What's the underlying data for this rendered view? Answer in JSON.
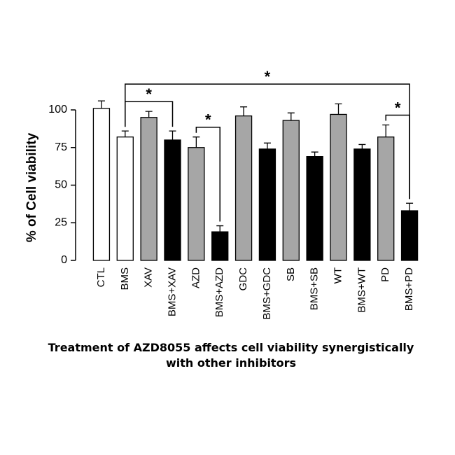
{
  "chart_data": {
    "type": "bar",
    "ylabel": "% of Cell viability",
    "categories": [
      "CTL",
      "BMS",
      "XAV",
      "BMS+XAV",
      "AZD",
      "BMS+AZD",
      "GDC",
      "BMS+GDC",
      "SB",
      "BMS+SB",
      "WT",
      "BMS+WT",
      "PD",
      "BMS+PD"
    ],
    "values": [
      101,
      82,
      95,
      80,
      75,
      19,
      96,
      74,
      93,
      69,
      97,
      74,
      82,
      33
    ],
    "errors": [
      5,
      4,
      4,
      6,
      7,
      4,
      6,
      4,
      5,
      3,
      7,
      3,
      8,
      5
    ],
    "colors": [
      "#ffffff",
      "#ffffff",
      "#a6a6a6",
      "#000000",
      "#a6a6a6",
      "#000000",
      "#a6a6a6",
      "#000000",
      "#a6a6a6",
      "#000000",
      "#a6a6a6",
      "#000000",
      "#a6a6a6",
      "#000000"
    ],
    "ylim": [
      0,
      100
    ],
    "yticks": [
      0,
      25,
      50,
      75,
      100
    ],
    "significance": [
      {
        "from": "BMS",
        "to": "BMS+XAV",
        "label": "*"
      },
      {
        "from": "AZD",
        "to": "BMS+AZD",
        "label": "*"
      },
      {
        "from": "PD",
        "to": "BMS+PD",
        "label": "*"
      },
      {
        "from": "BMS",
        "to": "BMS+PD",
        "label": "*"
      }
    ]
  },
  "caption": "Treatment of AZD8055 affects cell viability synergistically with other inhibitors"
}
